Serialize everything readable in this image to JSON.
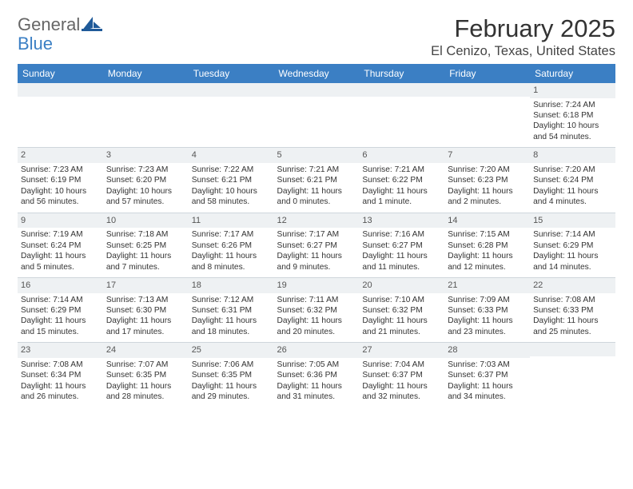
{
  "logo": {
    "text1": "General",
    "text2": "Blue"
  },
  "title": "February 2025",
  "location": "El Cenizo, Texas, United States",
  "columns": [
    "Sunday",
    "Monday",
    "Tuesday",
    "Wednesday",
    "Thursday",
    "Friday",
    "Saturday"
  ],
  "colors": {
    "header_bg": "#3b7fc4",
    "header_text": "#ffffff",
    "daynum_bg": "#eef1f3",
    "border": "#cfd6dc",
    "body_text": "#333333",
    "logo_gray": "#666666",
    "logo_blue": "#3b7fc4"
  },
  "weeks": [
    [
      {
        "n": "",
        "lines": []
      },
      {
        "n": "",
        "lines": []
      },
      {
        "n": "",
        "lines": []
      },
      {
        "n": "",
        "lines": []
      },
      {
        "n": "",
        "lines": []
      },
      {
        "n": "",
        "lines": []
      },
      {
        "n": "1",
        "lines": [
          "Sunrise: 7:24 AM",
          "Sunset: 6:18 PM",
          "Daylight: 10 hours",
          "and 54 minutes."
        ]
      }
    ],
    [
      {
        "n": "2",
        "lines": [
          "Sunrise: 7:23 AM",
          "Sunset: 6:19 PM",
          "Daylight: 10 hours",
          "and 56 minutes."
        ]
      },
      {
        "n": "3",
        "lines": [
          "Sunrise: 7:23 AM",
          "Sunset: 6:20 PM",
          "Daylight: 10 hours",
          "and 57 minutes."
        ]
      },
      {
        "n": "4",
        "lines": [
          "Sunrise: 7:22 AM",
          "Sunset: 6:21 PM",
          "Daylight: 10 hours",
          "and 58 minutes."
        ]
      },
      {
        "n": "5",
        "lines": [
          "Sunrise: 7:21 AM",
          "Sunset: 6:21 PM",
          "Daylight: 11 hours",
          "and 0 minutes."
        ]
      },
      {
        "n": "6",
        "lines": [
          "Sunrise: 7:21 AM",
          "Sunset: 6:22 PM",
          "Daylight: 11 hours",
          "and 1 minute."
        ]
      },
      {
        "n": "7",
        "lines": [
          "Sunrise: 7:20 AM",
          "Sunset: 6:23 PM",
          "Daylight: 11 hours",
          "and 2 minutes."
        ]
      },
      {
        "n": "8",
        "lines": [
          "Sunrise: 7:20 AM",
          "Sunset: 6:24 PM",
          "Daylight: 11 hours",
          "and 4 minutes."
        ]
      }
    ],
    [
      {
        "n": "9",
        "lines": [
          "Sunrise: 7:19 AM",
          "Sunset: 6:24 PM",
          "Daylight: 11 hours",
          "and 5 minutes."
        ]
      },
      {
        "n": "10",
        "lines": [
          "Sunrise: 7:18 AM",
          "Sunset: 6:25 PM",
          "Daylight: 11 hours",
          "and 7 minutes."
        ]
      },
      {
        "n": "11",
        "lines": [
          "Sunrise: 7:17 AM",
          "Sunset: 6:26 PM",
          "Daylight: 11 hours",
          "and 8 minutes."
        ]
      },
      {
        "n": "12",
        "lines": [
          "Sunrise: 7:17 AM",
          "Sunset: 6:27 PM",
          "Daylight: 11 hours",
          "and 9 minutes."
        ]
      },
      {
        "n": "13",
        "lines": [
          "Sunrise: 7:16 AM",
          "Sunset: 6:27 PM",
          "Daylight: 11 hours",
          "and 11 minutes."
        ]
      },
      {
        "n": "14",
        "lines": [
          "Sunrise: 7:15 AM",
          "Sunset: 6:28 PM",
          "Daylight: 11 hours",
          "and 12 minutes."
        ]
      },
      {
        "n": "15",
        "lines": [
          "Sunrise: 7:14 AM",
          "Sunset: 6:29 PM",
          "Daylight: 11 hours",
          "and 14 minutes."
        ]
      }
    ],
    [
      {
        "n": "16",
        "lines": [
          "Sunrise: 7:14 AM",
          "Sunset: 6:29 PM",
          "Daylight: 11 hours",
          "and 15 minutes."
        ]
      },
      {
        "n": "17",
        "lines": [
          "Sunrise: 7:13 AM",
          "Sunset: 6:30 PM",
          "Daylight: 11 hours",
          "and 17 minutes."
        ]
      },
      {
        "n": "18",
        "lines": [
          "Sunrise: 7:12 AM",
          "Sunset: 6:31 PM",
          "Daylight: 11 hours",
          "and 18 minutes."
        ]
      },
      {
        "n": "19",
        "lines": [
          "Sunrise: 7:11 AM",
          "Sunset: 6:32 PM",
          "Daylight: 11 hours",
          "and 20 minutes."
        ]
      },
      {
        "n": "20",
        "lines": [
          "Sunrise: 7:10 AM",
          "Sunset: 6:32 PM",
          "Daylight: 11 hours",
          "and 21 minutes."
        ]
      },
      {
        "n": "21",
        "lines": [
          "Sunrise: 7:09 AM",
          "Sunset: 6:33 PM",
          "Daylight: 11 hours",
          "and 23 minutes."
        ]
      },
      {
        "n": "22",
        "lines": [
          "Sunrise: 7:08 AM",
          "Sunset: 6:33 PM",
          "Daylight: 11 hours",
          "and 25 minutes."
        ]
      }
    ],
    [
      {
        "n": "23",
        "lines": [
          "Sunrise: 7:08 AM",
          "Sunset: 6:34 PM",
          "Daylight: 11 hours",
          "and 26 minutes."
        ]
      },
      {
        "n": "24",
        "lines": [
          "Sunrise: 7:07 AM",
          "Sunset: 6:35 PM",
          "Daylight: 11 hours",
          "and 28 minutes."
        ]
      },
      {
        "n": "25",
        "lines": [
          "Sunrise: 7:06 AM",
          "Sunset: 6:35 PM",
          "Daylight: 11 hours",
          "and 29 minutes."
        ]
      },
      {
        "n": "26",
        "lines": [
          "Sunrise: 7:05 AM",
          "Sunset: 6:36 PM",
          "Daylight: 11 hours",
          "and 31 minutes."
        ]
      },
      {
        "n": "27",
        "lines": [
          "Sunrise: 7:04 AM",
          "Sunset: 6:37 PM",
          "Daylight: 11 hours",
          "and 32 minutes."
        ]
      },
      {
        "n": "28",
        "lines": [
          "Sunrise: 7:03 AM",
          "Sunset: 6:37 PM",
          "Daylight: 11 hours",
          "and 34 minutes."
        ]
      },
      {
        "n": "",
        "lines": []
      }
    ]
  ]
}
